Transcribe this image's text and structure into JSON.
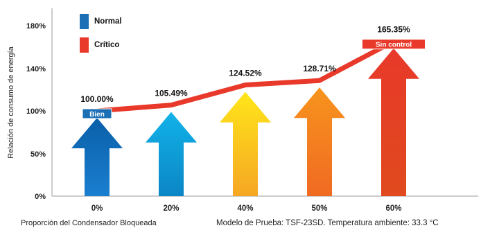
{
  "chart_data": {
    "type": "bar",
    "ylabel": "Relación de consumo de energía",
    "xlabel": "Proporción del Condensador Bloqueada",
    "note": "Modelo de Prueba: TSF-23SD. Temperatura ambiente: 33.3 °C",
    "categories": [
      "0%",
      "20%",
      "40%",
      "50%",
      "60%"
    ],
    "values": [
      100.0,
      105.49,
      124.52,
      128.71,
      165.35
    ],
    "value_labels": [
      "100.00%",
      "105.49%",
      "124.52%",
      "128.71%",
      "165.35%"
    ],
    "y_ticks": [
      "0%",
      "50%",
      "100%",
      "140%",
      "180%"
    ],
    "legend": [
      {
        "name": "Normal",
        "color": "#1a6fb5"
      },
      {
        "name": "Crítico",
        "color": "#e8392a"
      }
    ],
    "status_labels": [
      {
        "index": 0,
        "text": "Bien",
        "color": "#1a6fb5"
      },
      {
        "index": 4,
        "text": "Sin control",
        "color": "#e8392a"
      }
    ],
    "arrow_colors": [
      {
        "top": "#0a5fa8",
        "bottom": "#1a7fd0"
      },
      {
        "top": "#12b2e8",
        "bottom": "#0b86c6"
      },
      {
        "top": "#ffe61a",
        "bottom": "#f5a623"
      },
      {
        "top": "#f7941d",
        "bottom": "#f06a22"
      },
      {
        "top": "#e8392a",
        "bottom": "#e04a1e"
      }
    ],
    "line_color": "#e8392a"
  }
}
